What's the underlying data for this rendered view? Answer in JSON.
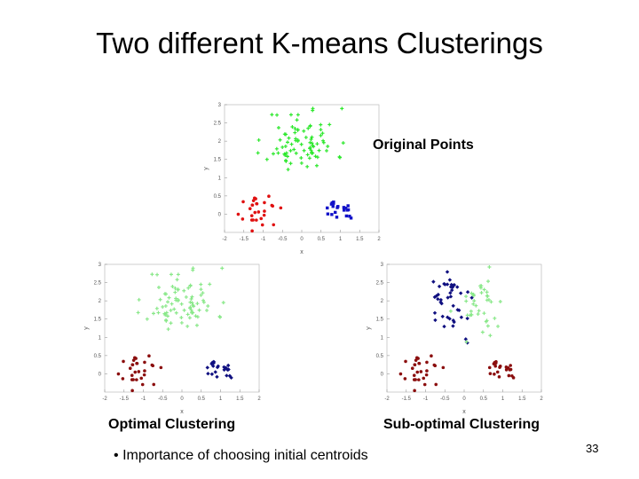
{
  "slide": {
    "title": "Two different K-means Clusterings",
    "bullet_marker": "•",
    "bullet": "Importance of choosing initial centroids",
    "page_number": "33"
  },
  "captions": {
    "original": "Original Points",
    "optimal": "Optimal Clustering",
    "suboptimal": "Sub-optimal Clustering"
  },
  "chart_data": [
    {
      "type": "scatter",
      "title": "",
      "xlabel": "x",
      "ylabel": "y",
      "xlim": [
        -2,
        2
      ],
      "ylim": [
        -0.5,
        3
      ],
      "xticks": [
        -2,
        -1.5,
        -1,
        -0.5,
        0,
        0.5,
        1,
        1.5,
        2
      ],
      "yticks": [
        0,
        0.5,
        1,
        1.5,
        2,
        2.5,
        3
      ],
      "series": [
        {
          "color": "#2ee82e",
          "marker": "plus",
          "seed": 11,
          "center": [
            0,
            2
          ],
          "spread": [
            0.45,
            0.45
          ],
          "count": 85
        },
        {
          "color": "#e01010",
          "marker": "dot",
          "seed": 23,
          "center": [
            -1.05,
            0.05
          ],
          "spread": [
            0.22,
            0.2
          ],
          "count": 28
        },
        {
          "color": "#1010c8",
          "marker": "square",
          "seed": 37,
          "center": [
            1.0,
            0.1
          ],
          "spread": [
            0.16,
            0.12
          ],
          "count": 22
        }
      ]
    },
    {
      "type": "scatter",
      "title": "",
      "xlabel": "x",
      "ylabel": "y",
      "xlim": [
        -2,
        2
      ],
      "ylim": [
        -0.5,
        3
      ],
      "xticks": [
        -2,
        -1.5,
        -1,
        -0.5,
        0,
        0.5,
        1,
        1.5,
        2
      ],
      "yticks": [
        0,
        0.5,
        1,
        1.5,
        2,
        2.5,
        3
      ],
      "series": [
        {
          "color": "#8ae88a",
          "marker": "plus",
          "seed": 11,
          "center": [
            0,
            2
          ],
          "spread": [
            0.45,
            0.45
          ],
          "count": 85
        },
        {
          "color": "#8b0e0e",
          "marker": "dot",
          "seed": 23,
          "center": [
            -1.05,
            0.05
          ],
          "spread": [
            0.22,
            0.2
          ],
          "count": 28
        },
        {
          "color": "#101080",
          "marker": "diamond",
          "seed": 37,
          "center": [
            1.0,
            0.1
          ],
          "spread": [
            0.16,
            0.12
          ],
          "count": 22
        }
      ]
    },
    {
      "type": "scatter",
      "title": "",
      "xlabel": "x",
      "ylabel": "y",
      "xlim": [
        -2,
        2
      ],
      "ylim": [
        -0.5,
        3
      ],
      "xticks": [
        -2,
        -1.5,
        -1,
        -0.5,
        0,
        0.5,
        1,
        1.5,
        2
      ],
      "yticks": [
        0,
        0.5,
        1,
        1.5,
        2,
        2.5,
        3
      ],
      "series": [
        {
          "color": "#101080",
          "marker": "diamond",
          "seed": 41,
          "center": [
            -0.3,
            2.0
          ],
          "spread": [
            0.3,
            0.45
          ],
          "count": 45
        },
        {
          "color": "#8ae88a",
          "marker": "plus",
          "seed": 53,
          "center": [
            0.45,
            1.95
          ],
          "spread": [
            0.3,
            0.45
          ],
          "count": 40
        },
        {
          "color": "#8b0e0e",
          "marker": "dot",
          "seed": 23,
          "center": [
            -1.05,
            0.05
          ],
          "spread": [
            0.22,
            0.2
          ],
          "count": 28
        },
        {
          "color": "#8b0e0e",
          "marker": "dot",
          "seed": 37,
          "center": [
            1.0,
            0.1
          ],
          "spread": [
            0.16,
            0.12
          ],
          "count": 22
        }
      ]
    }
  ]
}
